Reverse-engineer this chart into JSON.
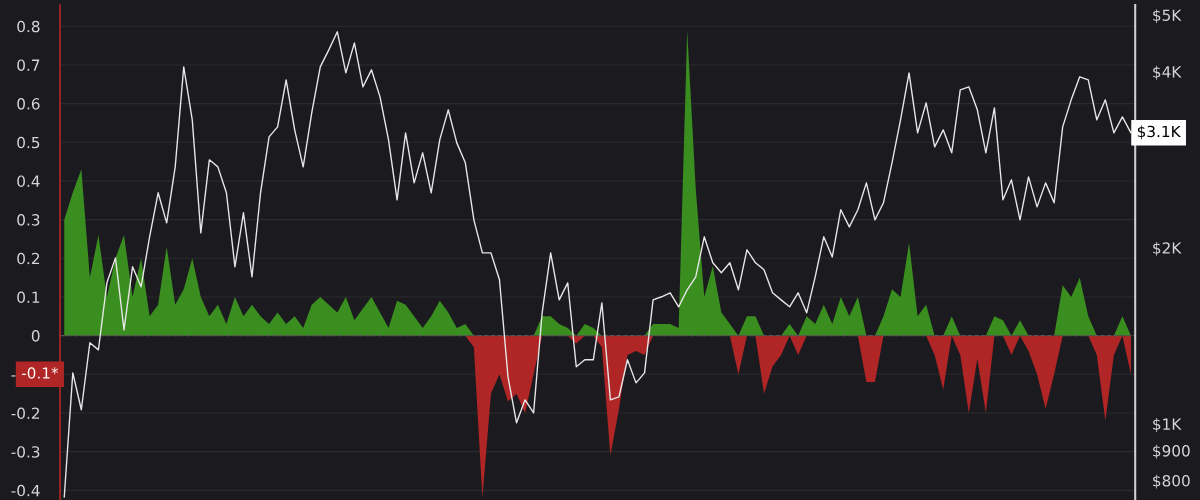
{
  "chart_data": {
    "type": "area",
    "categories": [
      null,
      null,
      null,
      null,
      null,
      null,
      null,
      null,
      null,
      null,
      null,
      null,
      null,
      null,
      null,
      null,
      null,
      null,
      null,
      null,
      null,
      null,
      null,
      null,
      null,
      null,
      null,
      null,
      null,
      null,
      null,
      null,
      null,
      null,
      null,
      null,
      null,
      null,
      null,
      null,
      null,
      null,
      null,
      null,
      null,
      null,
      null,
      null,
      null,
      null,
      null,
      null,
      null,
      null,
      null,
      null,
      null,
      null,
      null,
      null,
      null,
      null,
      null,
      null,
      null,
      null,
      null,
      null,
      null,
      null,
      null,
      null,
      null,
      null,
      null,
      null,
      null,
      null,
      null,
      null,
      null,
      null,
      null,
      null,
      null,
      null,
      null,
      null,
      null,
      null,
      null,
      null,
      null,
      null,
      null,
      null,
      null,
      null,
      null,
      null,
      null,
      null,
      null,
      null,
      null,
      null,
      null,
      null,
      null,
      null,
      null,
      null,
      null,
      null,
      null,
      null,
      null,
      null,
      null,
      null,
      null,
      null,
      null,
      null,
      null,
      null
    ],
    "series": [
      {
        "color": "#3a8d1f",
        "values": [
          0.3,
          0.37,
          0.43,
          0.15,
          0.26,
          0.1,
          0.2,
          0.26,
          0.1,
          0.2,
          0.05,
          0.08,
          0.23,
          0.08,
          0.12,
          0.2,
          0.1,
          0.05,
          0.08,
          0.03,
          0.1,
          0.05,
          0.08,
          0.05,
          0.03,
          0.06,
          0.03,
          0.05,
          0.02,
          0.08,
          0.1,
          0.08,
          0.06,
          0.1,
          0.04,
          0.07,
          0.1,
          0.06,
          0.02,
          0.09,
          0.08,
          0.05,
          0.02,
          0.05,
          0.09,
          0.06,
          0.02,
          0.03,
          0,
          0,
          0,
          0,
          0,
          0,
          0,
          0,
          0.05,
          0.05,
          0.03,
          0.02,
          0,
          0.03,
          0.02,
          0,
          0,
          0,
          0,
          0,
          0,
          0.03,
          0.03,
          0.03,
          0.02,
          0.79,
          0.38,
          0.1,
          0.18,
          0.06,
          0.03,
          0,
          0.05,
          0.05,
          0,
          0,
          0,
          0.03,
          0,
          0.05,
          0.03,
          0.08,
          0.03,
          0.1,
          0.05,
          0.1,
          0,
          0,
          0.05,
          0.12,
          0.1,
          0.24,
          0.05,
          0.08,
          0,
          0,
          0.05,
          0,
          0,
          0,
          0,
          0.05,
          0.04,
          0,
          0.04,
          0,
          0,
          0,
          0,
          0.13,
          0.1,
          0.15,
          0.05,
          0,
          0,
          0,
          0.05,
          0
        ]
      },
      {
        "color": "#b02525",
        "values": [
          0,
          0,
          0,
          0,
          0,
          0,
          0,
          0,
          0,
          0,
          0,
          0,
          0,
          0,
          0,
          0,
          0,
          0,
          0,
          0,
          0,
          0,
          0,
          0,
          0,
          0,
          0,
          0,
          0,
          0,
          0,
          0,
          0,
          0,
          0,
          0,
          0,
          0,
          0,
          0,
          0,
          0,
          0,
          0,
          0,
          0,
          0,
          0,
          -0.03,
          -0.42,
          -0.15,
          -0.1,
          -0.17,
          -0.15,
          -0.2,
          -0.1,
          0,
          0,
          0,
          0,
          -0.02,
          0,
          0,
          -0.03,
          -0.31,
          -0.19,
          -0.05,
          -0.04,
          -0.05,
          0,
          0,
          0,
          0,
          0,
          0,
          0,
          0,
          0,
          0,
          -0.1,
          0,
          0,
          -0.15,
          -0.08,
          -0.05,
          0,
          -0.05,
          0,
          0,
          0,
          0,
          0,
          0,
          0,
          -0.12,
          -0.12,
          0,
          0,
          0,
          0,
          0,
          0,
          -0.05,
          -0.14,
          0,
          -0.05,
          -0.2,
          -0.06,
          -0.2,
          0,
          0,
          -0.05,
          0,
          -0.04,
          -0.1,
          -0.19,
          -0.1,
          0,
          0,
          0,
          0,
          -0.05,
          -0.22,
          -0.05,
          0,
          -0.1
        ]
      },
      {
        "type": "line",
        "axis": "y2",
        "color": "#e6e6e6",
        "values": [
          750,
          1222,
          1057,
          1376,
          1338,
          1742,
          1922,
          1448,
          1856,
          1715,
          2088,
          2483,
          2206,
          2750,
          4076,
          3309,
          2121,
          2827,
          2750,
          2483,
          1856,
          2295,
          1784,
          2483,
          3094,
          3219,
          3873,
          3181,
          2750,
          3401,
          4076,
          4358,
          4679,
          3981,
          4480,
          3768,
          4029,
          3622,
          3058,
          2415,
          3144,
          2582,
          2906,
          2483,
          3058,
          3442,
          3022,
          2794,
          2232,
          1960,
          1960,
          1763,
          1203,
          1004,
          1099,
          1044,
          1548,
          1960,
          1629,
          1742,
          1252,
          1287,
          1287,
          1610,
          1099,
          1112,
          1287,
          1175,
          1222,
          1629,
          1649,
          1675,
          1585,
          1695,
          1784,
          2088,
          1885,
          1813,
          1885,
          1695,
          1984,
          1885,
          1834,
          1675,
          1629,
          1585,
          1675,
          1548,
          1784,
          2088,
          1929,
          2323,
          2171,
          2323,
          2582,
          2232,
          2387,
          2794,
          3309,
          3981,
          3144,
          3538,
          2975,
          3181,
          2906,
          3724,
          3768,
          3442,
          2906,
          3469,
          2415,
          2613,
          2232,
          2644,
          2349,
          2582,
          2387,
          3219,
          3580,
          3920,
          3873,
          3309,
          3580,
          3144,
          3348,
          3144
        ]
      }
    ],
    "ylim": [
      -0.425,
      0.855
    ],
    "yticks": [
      -0.4,
      -0.3,
      -0.2,
      -0.1,
      0,
      0.1,
      0.2,
      0.3,
      0.4,
      0.5,
      0.6,
      0.7,
      0.8
    ],
    "y2lim": [
      741,
      5200
    ],
    "y2ticks": [
      {
        "value": 800,
        "label": "$800"
      },
      {
        "value": 900,
        "label": "$900"
      },
      {
        "value": 1000,
        "label": "$1K"
      },
      {
        "value": 2000,
        "label": "$2K"
      },
      {
        "value": 4000,
        "label": "$4K"
      },
      {
        "value": 5000,
        "label": "$5K"
      }
    ],
    "log": "y2",
    "grid": "y",
    "tick_labels": "y",
    "ref_lines": [
      {
        "axis": "y",
        "value": 0,
        "color": "#555555",
        "line_style": "dashed"
      }
    ],
    "annotations": [
      "-0.1*",
      "$3.1K"
    ]
  }
}
